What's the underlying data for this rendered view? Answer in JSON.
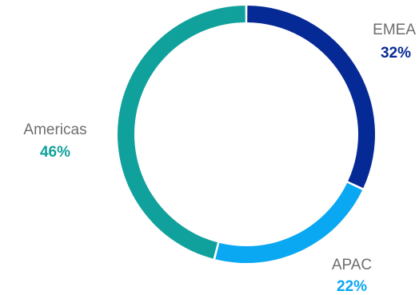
{
  "chart_data": {
    "type": "pie",
    "variant": "donut",
    "title": "",
    "legend": "none",
    "slices": [
      {
        "label": "EMEA",
        "value": 32,
        "display": "32%",
        "color": "#062a95"
      },
      {
        "label": "APAC",
        "value": 22,
        "display": "22%",
        "color": "#0aa7f2"
      },
      {
        "label": "Americas",
        "value": 46,
        "display": "46%",
        "color": "#11a19c"
      }
    ]
  }
}
